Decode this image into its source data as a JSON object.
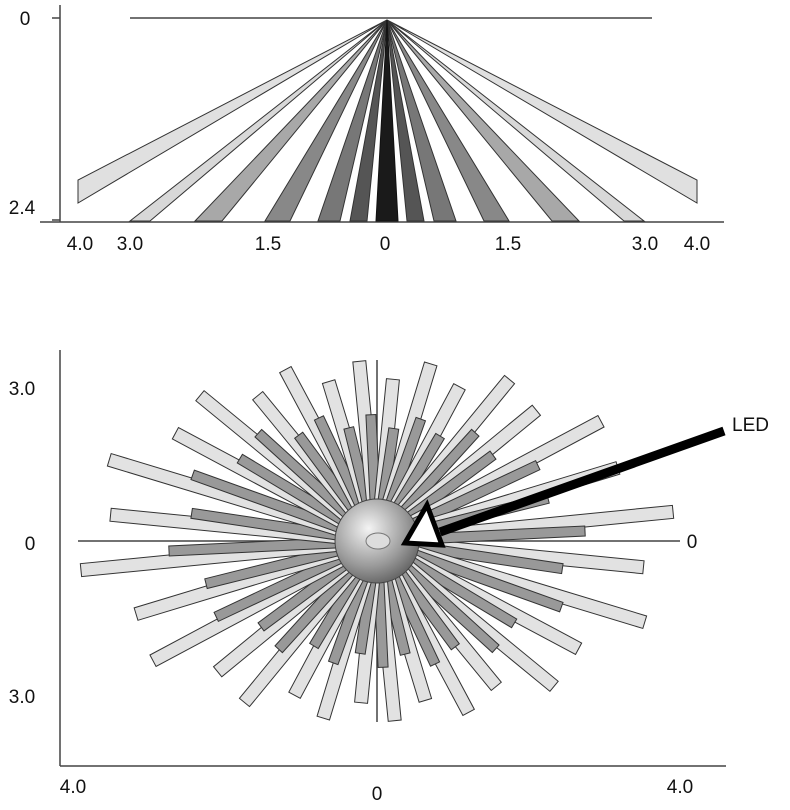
{
  "side_view": {
    "y_labels": [
      "0",
      "2.4"
    ],
    "x_labels": [
      "4.0",
      "3.0",
      "1.5",
      "0",
      "1.5",
      "3.0",
      "4.0"
    ]
  },
  "top_view": {
    "y_labels": [
      "3.0",
      "0",
      "3.0"
    ],
    "x_labels": [
      "4.0",
      "0",
      "4.0"
    ],
    "right_label": "0",
    "callout": "LED"
  }
}
